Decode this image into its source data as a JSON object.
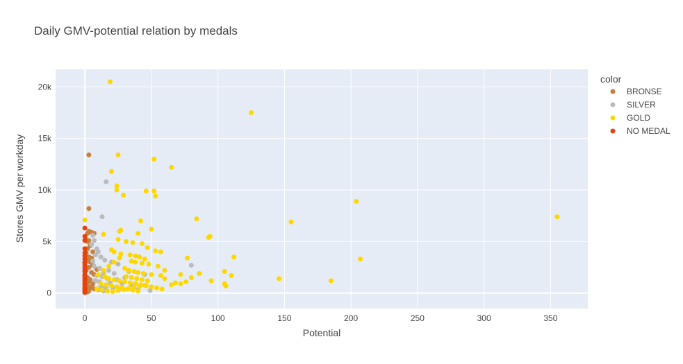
{
  "chart_data": {
    "type": "scatter",
    "title": "Daily GMV-potential relation by medals",
    "xlabel": "Potential",
    "ylabel": "Stores GMV per workday",
    "xlim": [
      -22,
      378
    ],
    "ylim": [
      -1500,
      21700
    ],
    "xticks": [
      {
        "value": 0,
        "label": "0"
      },
      {
        "value": 50,
        "label": "50"
      },
      {
        "value": 100,
        "label": "100"
      },
      {
        "value": 150,
        "label": "150"
      },
      {
        "value": 200,
        "label": "200"
      },
      {
        "value": 250,
        "label": "250"
      },
      {
        "value": 300,
        "label": "300"
      },
      {
        "value": 350,
        "label": "350"
      }
    ],
    "yticks": [
      {
        "value": 0,
        "label": "0"
      },
      {
        "value": 5000,
        "label": "5k"
      },
      {
        "value": 10000,
        "label": "10k"
      },
      {
        "value": 15000,
        "label": "15k"
      },
      {
        "value": 20000,
        "label": "20k"
      }
    ],
    "grid": true,
    "legend": {
      "title": "color",
      "position": "right"
    },
    "series": [
      {
        "name": "BRONSE",
        "color": "#c68040",
        "points": [
          [
            3,
            13400
          ],
          [
            3,
            8200
          ],
          [
            2,
            5800
          ],
          [
            3,
            6000
          ],
          [
            5,
            5900
          ],
          [
            7,
            5800
          ],
          [
            1,
            5200
          ],
          [
            3,
            5100
          ],
          [
            2,
            5000
          ],
          [
            4,
            4600
          ],
          [
            2,
            4300
          ],
          [
            6,
            4000
          ],
          [
            1,
            3900
          ],
          [
            3,
            3500
          ],
          [
            5,
            3400
          ],
          [
            2,
            3200
          ],
          [
            4,
            3000
          ],
          [
            6,
            2700
          ],
          [
            3,
            2500
          ],
          [
            1,
            2200
          ],
          [
            5,
            2000
          ],
          [
            7,
            1800
          ],
          [
            2,
            1500
          ],
          [
            4,
            1300
          ],
          [
            3,
            1100
          ],
          [
            6,
            900
          ],
          [
            2,
            700
          ],
          [
            4,
            500
          ],
          [
            1,
            300
          ],
          [
            3,
            200
          ],
          [
            8,
            1200
          ],
          [
            5,
            600
          ],
          [
            9,
            2300
          ],
          [
            7,
            400
          ],
          [
            2,
            100
          ]
        ]
      },
      {
        "name": "SILVER",
        "color": "#bbbbbb",
        "points": [
          [
            16,
            10800
          ],
          [
            13,
            7400
          ],
          [
            6,
            5600
          ],
          [
            9,
            4300
          ],
          [
            10,
            4000
          ],
          [
            8,
            3700
          ],
          [
            12,
            3500
          ],
          [
            15,
            3200
          ],
          [
            20,
            3000
          ],
          [
            25,
            2800
          ],
          [
            7,
            2600
          ],
          [
            11,
            2400
          ],
          [
            18,
            2200
          ],
          [
            14,
            2000
          ],
          [
            22,
            1900
          ],
          [
            9,
            1700
          ],
          [
            13,
            1600
          ],
          [
            30,
            1500
          ],
          [
            17,
            1400
          ],
          [
            24,
            1300
          ],
          [
            8,
            1200
          ],
          [
            11,
            1100
          ],
          [
            19,
            1000
          ],
          [
            28,
            900
          ],
          [
            35,
            800
          ],
          [
            12,
            700
          ],
          [
            16,
            600
          ],
          [
            21,
            500
          ],
          [
            26,
            400
          ],
          [
            10,
            300
          ],
          [
            14,
            200
          ],
          [
            40,
            350
          ],
          [
            49,
            250
          ],
          [
            80,
            2700
          ],
          [
            6,
            3100
          ],
          [
            33,
            2100
          ],
          [
            45,
            1800
          ],
          [
            5,
            4700
          ],
          [
            7,
            5100
          ],
          [
            15,
            500
          ]
        ]
      },
      {
        "name": "GOLD",
        "color": "#ffd700",
        "points": [
          [
            19,
            20500
          ],
          [
            125,
            17500
          ],
          [
            25,
            13400
          ],
          [
            52,
            13000
          ],
          [
            65,
            12200
          ],
          [
            20,
            11800
          ],
          [
            24,
            10400
          ],
          [
            24,
            10000
          ],
          [
            46,
            9900
          ],
          [
            52,
            9900
          ],
          [
            29,
            9500
          ],
          [
            53,
            9400
          ],
          [
            204,
            8900
          ],
          [
            84,
            7200
          ],
          [
            155,
            6900
          ],
          [
            42,
            7000
          ],
          [
            355,
            7400
          ],
          [
            0,
            7100
          ],
          [
            27,
            6100
          ],
          [
            26,
            6000
          ],
          [
            50,
            6200
          ],
          [
            14,
            5700
          ],
          [
            40,
            5800
          ],
          [
            94,
            5500
          ],
          [
            93,
            5400
          ],
          [
            25,
            5200
          ],
          [
            31,
            5000
          ],
          [
            36,
            4900
          ],
          [
            43,
            4800
          ],
          [
            47,
            4400
          ],
          [
            53,
            4100
          ],
          [
            57,
            4000
          ],
          [
            20,
            4200
          ],
          [
            22,
            4000
          ],
          [
            27,
            3800
          ],
          [
            34,
            3700
          ],
          [
            38,
            3600
          ],
          [
            41,
            3500
          ],
          [
            45,
            3300
          ],
          [
            77,
            3400
          ],
          [
            207,
            3300
          ],
          [
            112,
            3500
          ],
          [
            35,
            3100
          ],
          [
            38,
            3000
          ],
          [
            43,
            2900
          ],
          [
            48,
            2800
          ],
          [
            55,
            2600
          ],
          [
            60,
            2200
          ],
          [
            30,
            2400
          ],
          [
            33,
            2200
          ],
          [
            37,
            2100
          ],
          [
            40,
            2000
          ],
          [
            44,
            1900
          ],
          [
            50,
            1800
          ],
          [
            57,
            1700
          ],
          [
            72,
            1800
          ],
          [
            80,
            1500
          ],
          [
            86,
            1900
          ],
          [
            105,
            2100
          ],
          [
            110,
            1700
          ],
          [
            146,
            1400
          ],
          [
            185,
            1200
          ],
          [
            95,
            1200
          ],
          [
            105,
            900
          ],
          [
            106,
            700
          ],
          [
            68,
            1000
          ],
          [
            72,
            900
          ],
          [
            76,
            1100
          ],
          [
            60,
            1400
          ],
          [
            65,
            800
          ],
          [
            15,
            1600
          ],
          [
            18,
            1400
          ],
          [
            22,
            1300
          ],
          [
            26,
            1200
          ],
          [
            30,
            1100
          ],
          [
            34,
            1000
          ],
          [
            38,
            900
          ],
          [
            42,
            800
          ],
          [
            46,
            700
          ],
          [
            50,
            600
          ],
          [
            54,
            500
          ],
          [
            58,
            400
          ],
          [
            12,
            900
          ],
          [
            16,
            800
          ],
          [
            20,
            700
          ],
          [
            24,
            600
          ],
          [
            28,
            500
          ],
          [
            32,
            400
          ],
          [
            36,
            300
          ],
          [
            40,
            200
          ],
          [
            10,
            1800
          ],
          [
            14,
            2200
          ],
          [
            18,
            2600
          ],
          [
            22,
            3000
          ],
          [
            26,
            3400
          ],
          [
            9,
            400
          ],
          [
            13,
            300
          ],
          [
            17,
            200
          ],
          [
            21,
            150
          ],
          [
            25,
            250
          ],
          [
            29,
            350
          ],
          [
            33,
            450
          ],
          [
            37,
            550
          ],
          [
            41,
            650
          ],
          [
            45,
            750
          ],
          [
            31,
            1600
          ],
          [
            35,
            1500
          ],
          [
            39,
            1400
          ],
          [
            43,
            1300
          ],
          [
            47,
            1200
          ]
        ]
      },
      {
        "name": "NO MEDAL",
        "color": "#e8420a",
        "points": [
          [
            0,
            6300
          ],
          [
            0,
            5500
          ],
          [
            0,
            5100
          ],
          [
            0,
            4300
          ],
          [
            0,
            3900
          ],
          [
            0,
            3600
          ],
          [
            0,
            3300
          ],
          [
            0,
            3000
          ],
          [
            0,
            2700
          ],
          [
            0,
            2400
          ],
          [
            0,
            2100
          ],
          [
            0,
            1800
          ],
          [
            0,
            1600
          ],
          [
            0,
            1400
          ],
          [
            0,
            1200
          ],
          [
            0,
            1000
          ],
          [
            0,
            800
          ],
          [
            0,
            600
          ],
          [
            0,
            400
          ],
          [
            0,
            200
          ],
          [
            0,
            50
          ],
          [
            0,
            2900
          ],
          [
            0,
            2500
          ],
          [
            0,
            2200
          ],
          [
            0,
            1700
          ],
          [
            0,
            1300
          ],
          [
            0,
            900
          ],
          [
            0,
            500
          ],
          [
            0,
            300
          ],
          [
            0,
            100
          ]
        ]
      }
    ]
  }
}
